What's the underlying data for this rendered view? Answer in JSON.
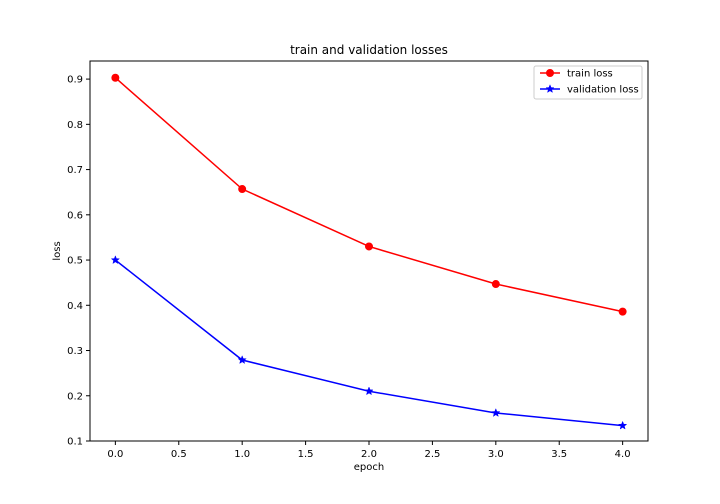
{
  "chart_data": {
    "type": "line",
    "title": "train and validation losses",
    "xlabel": "epoch",
    "ylabel": "loss",
    "x": [
      0,
      1,
      2,
      3,
      4
    ],
    "xlim": [
      -0.2,
      4.2
    ],
    "ylim": [
      0.1,
      0.94
    ],
    "xticks": [
      "0.0",
      "0.5",
      "1.0",
      "1.5",
      "2.0",
      "2.5",
      "3.0",
      "3.5",
      "4.0"
    ],
    "yticks": [
      "0.1",
      "0.2",
      "0.3",
      "0.4",
      "0.5",
      "0.6",
      "0.7",
      "0.8",
      "0.9"
    ],
    "grid": false,
    "legend_position": "top-right",
    "series": [
      {
        "name": "train loss",
        "color": "#ff0000",
        "marker": "circle",
        "values": [
          0.903,
          0.657,
          0.53,
          0.447,
          0.386
        ]
      },
      {
        "name": "validation loss",
        "color": "#0000ff",
        "marker": "star",
        "values": [
          0.5,
          0.279,
          0.21,
          0.162,
          0.134
        ]
      }
    ]
  }
}
